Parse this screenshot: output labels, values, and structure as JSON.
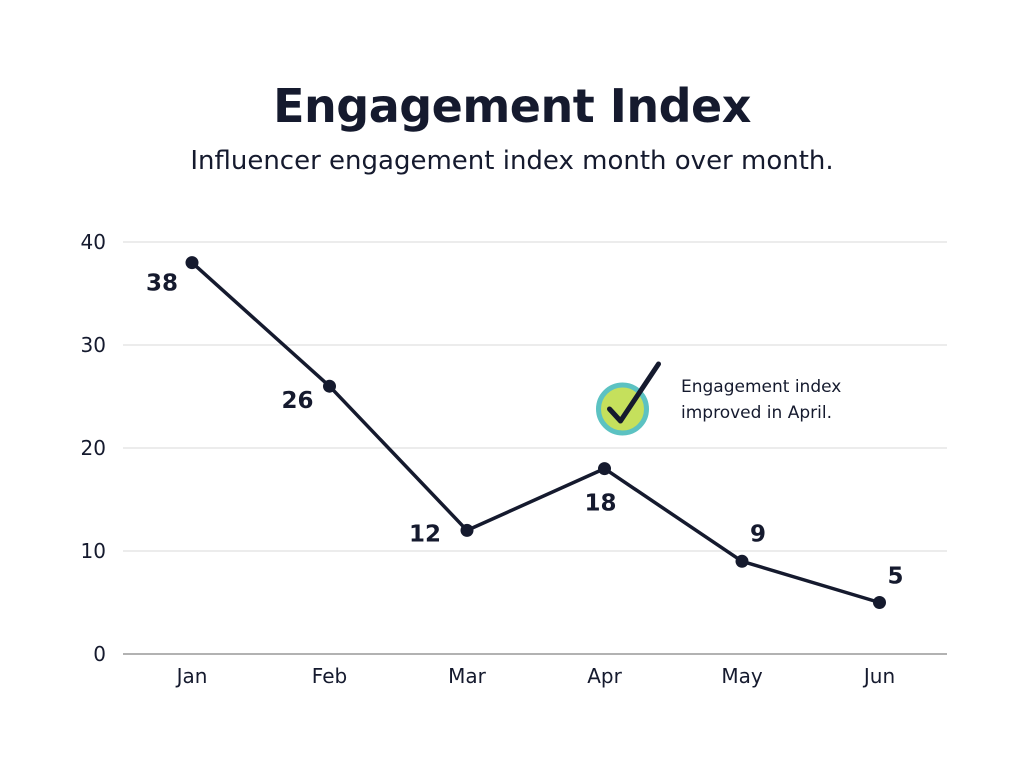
{
  "header": {
    "title": "Engagement Index",
    "subtitle": "Influencer engagement index month over month."
  },
  "chart_data": {
    "type": "line",
    "categories": [
      "Jan",
      "Feb",
      "Mar",
      "Apr",
      "May",
      "Jun"
    ],
    "series": [
      {
        "values": [
          38,
          26,
          12,
          18,
          9,
          5
        ]
      }
    ],
    "data_labels": [
      "38",
      "26",
      "12",
      "18",
      "9",
      "5"
    ],
    "title": "Engagement Index",
    "subtitle": "Influencer engagement index month over month.",
    "xlabel": "",
    "ylabel": "",
    "ylim": [
      0,
      40
    ],
    "yticks": [
      0,
      10,
      20,
      30,
      40
    ],
    "ytick_labels": [
      "0",
      "10",
      "20",
      "30",
      "40"
    ],
    "grid": true,
    "legend": "none",
    "annotation": {
      "category": "Apr",
      "icon": "checkmark-icon",
      "lines": [
        "Engagement index",
        "improved in April."
      ]
    },
    "colors": {
      "line": "#151a2e",
      "grid": "#d9d9d9",
      "axis": "#999999",
      "badge_fill": "#c5e05c",
      "badge_ring": "#5cc2c2"
    }
  }
}
